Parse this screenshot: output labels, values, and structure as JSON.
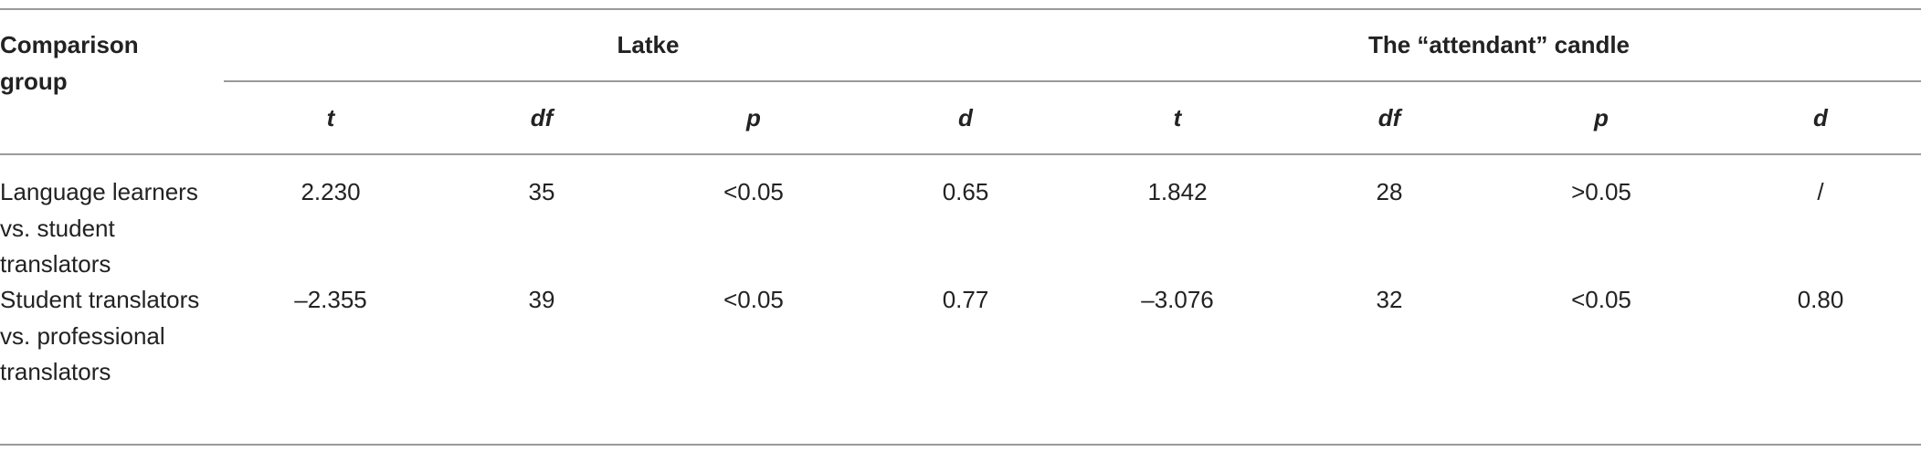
{
  "header": {
    "group_label": "Comparison group",
    "groups": [
      "Latke",
      "The “attendant” candle"
    ],
    "columns": [
      "t",
      "df",
      "p",
      "d",
      "t",
      "df",
      "p",
      "d"
    ]
  },
  "table": {
    "rows": [
      {
        "comparison": "Language learners vs. student translators",
        "values": [
          "2.230",
          "35",
          "<0.05",
          "0.65",
          "1.842",
          "28",
          ">0.05",
          "/"
        ]
      },
      {
        "comparison": "Student translators vs. professional translators",
        "values": [
          "–2.355",
          "39",
          "<0.05",
          "0.77",
          "–3.076",
          "32",
          "<0.05",
          "0.80"
        ]
      }
    ]
  }
}
